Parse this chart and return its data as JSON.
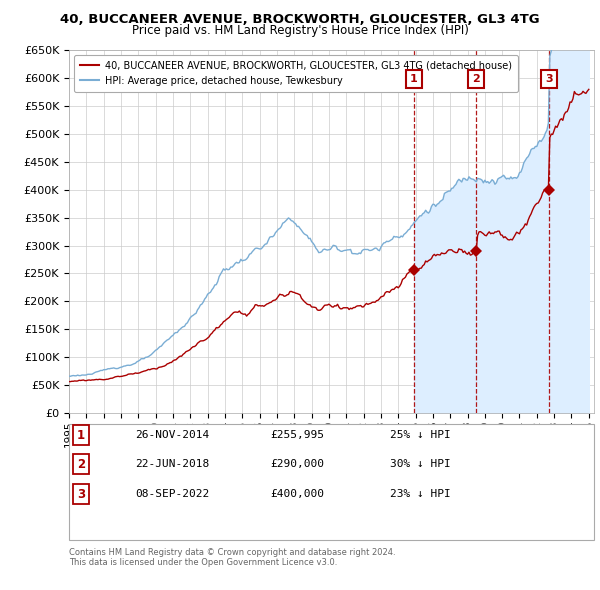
{
  "title": "40, BUCCANEER AVENUE, BROCKWORTH, GLOUCESTER, GL3 4TG",
  "subtitle": "Price paid vs. HM Land Registry's House Price Index (HPI)",
  "hpi_label": "HPI: Average price, detached house, Tewkesbury",
  "property_label": "40, BUCCANEER AVENUE, BROCKWORTH, GLOUCESTER, GL3 4TG (detached house)",
  "hpi_color": "#7aadd4",
  "property_color": "#aa0000",
  "shaded_color": "#ddeeff",
  "ylim": [
    0,
    650000
  ],
  "yticks": [
    0,
    50000,
    100000,
    150000,
    200000,
    250000,
    300000,
    350000,
    400000,
    450000,
    500000,
    550000,
    600000,
    650000
  ],
  "transactions": [
    {
      "num": 1,
      "date": "26-NOV-2014",
      "price": 255995,
      "year": 2014.9,
      "pct": "25%",
      "dir": "↓"
    },
    {
      "num": 2,
      "date": "22-JUN-2018",
      "price": 290000,
      "year": 2018.5,
      "pct": "30%",
      "dir": "↓"
    },
    {
      "num": 3,
      "date": "08-SEP-2022",
      "price": 400000,
      "year": 2022.7,
      "pct": "23%",
      "dir": "↓"
    }
  ],
  "footer_line1": "Contains HM Land Registry data © Crown copyright and database right 2024.",
  "footer_line2": "This data is licensed under the Open Government Licence v3.0.",
  "background_color": "#ffffff",
  "grid_color": "#cccccc"
}
